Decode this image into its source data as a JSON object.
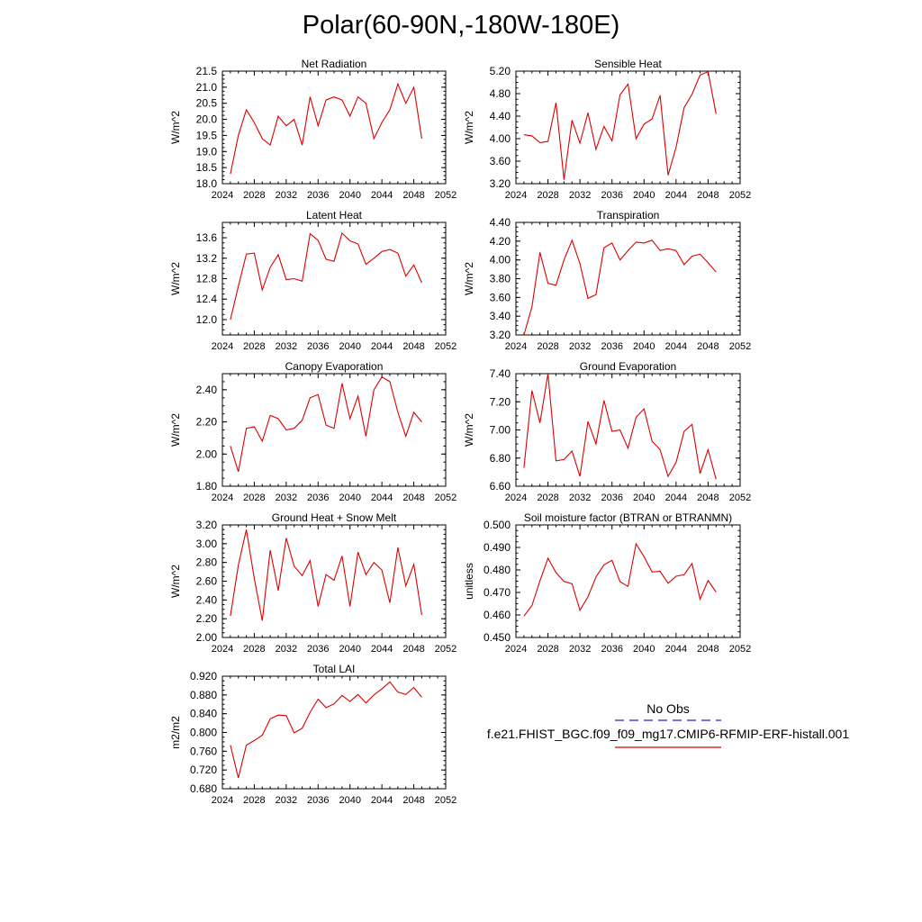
{
  "page": {
    "title": "Polar(60-90N,-180W-180E)",
    "legend": {
      "obs_label": "No Obs",
      "obs_color": "#2222cc",
      "case_label": "f.e21.FHIST_BGC.f09_f09_mg17.CMIP6-RFMIP-ERF-histall.001",
      "case_color": "#dd0000"
    }
  },
  "chart_data": [
    {
      "type": "line",
      "title": "Net Radiation",
      "ylabel": "W/m^2",
      "xlim": [
        2024,
        2052
      ],
      "xticks": [
        2024,
        2028,
        2032,
        2036,
        2040,
        2044,
        2048,
        2052
      ],
      "ylim": [
        18.0,
        21.5
      ],
      "yticks": [
        "18.0",
        "18.5",
        "19.0",
        "19.5",
        "20.0",
        "20.5",
        "21.0",
        "21.5"
      ],
      "series": [
        {
          "color": "#dd0000",
          "x": [
            2025,
            2026,
            2027,
            2028,
            2029,
            2030,
            2031,
            2032,
            2033,
            2034,
            2035,
            2036,
            2037,
            2038,
            2039,
            2040,
            2041,
            2042,
            2043,
            2044,
            2045,
            2046,
            2047,
            2048,
            2049
          ],
          "values": [
            18.3,
            19.5,
            20.3,
            19.9,
            19.4,
            19.2,
            20.1,
            19.8,
            20.0,
            19.2,
            20.7,
            19.8,
            20.6,
            20.7,
            20.6,
            20.1,
            20.7,
            20.5,
            19.4,
            19.9,
            20.3,
            21.1,
            20.5,
            21.0,
            19.4
          ]
        }
      ]
    },
    {
      "type": "line",
      "title": "Sensible Heat",
      "ylabel": "W/m^2",
      "xlim": [
        2024,
        2052
      ],
      "xticks": [
        2024,
        2028,
        2032,
        2036,
        2040,
        2044,
        2048,
        2052
      ],
      "ylim": [
        3.2,
        5.2
      ],
      "yticks": [
        "3.20",
        "3.60",
        "4.00",
        "4.40",
        "4.80",
        "5.20"
      ],
      "series": [
        {
          "color": "#dd0000",
          "x": [
            2025,
            2026,
            2027,
            2028,
            2029,
            2030,
            2031,
            2032,
            2033,
            2034,
            2035,
            2036,
            2037,
            2038,
            2039,
            2040,
            2041,
            2042,
            2043,
            2044,
            2045,
            2046,
            2047,
            2048,
            2049
          ],
          "values": [
            4.07,
            4.05,
            3.93,
            3.95,
            4.64,
            3.27,
            4.33,
            3.92,
            4.46,
            3.81,
            4.22,
            3.96,
            4.78,
            4.97,
            4.0,
            4.26,
            4.35,
            4.77,
            3.35,
            3.85,
            4.55,
            4.79,
            5.13,
            5.19,
            4.44
          ]
        }
      ]
    },
    {
      "type": "line",
      "title": "Latent Heat",
      "ylabel": "W/m^2",
      "xlim": [
        2024,
        2052
      ],
      "xticks": [
        2024,
        2028,
        2032,
        2036,
        2040,
        2044,
        2048,
        2052
      ],
      "ylim": [
        11.7,
        13.9
      ],
      "yticks": [
        "12.0",
        "12.4",
        "12.8",
        "13.2",
        "13.6"
      ],
      "series": [
        {
          "color": "#dd0000",
          "x": [
            2025,
            2026,
            2027,
            2028,
            2029,
            2030,
            2031,
            2032,
            2033,
            2034,
            2035,
            2036,
            2037,
            2038,
            2039,
            2040,
            2041,
            2042,
            2043,
            2044,
            2045,
            2046,
            2047,
            2048,
            2049
          ],
          "values": [
            12.0,
            12.65,
            13.28,
            13.3,
            12.58,
            13.02,
            13.27,
            12.78,
            12.8,
            12.75,
            13.68,
            13.55,
            13.18,
            13.14,
            13.69,
            13.54,
            13.48,
            13.08,
            13.2,
            13.33,
            13.37,
            13.3,
            12.85,
            13.07,
            12.72
          ]
        }
      ]
    },
    {
      "type": "line",
      "title": "Transpiration",
      "ylabel": "W/m^2",
      "xlim": [
        2024,
        2052
      ],
      "xticks": [
        2024,
        2028,
        2032,
        2036,
        2040,
        2044,
        2048,
        2052
      ],
      "ylim": [
        3.2,
        4.4
      ],
      "yticks": [
        "3.20",
        "3.40",
        "3.60",
        "3.80",
        "4.00",
        "4.20",
        "4.40"
      ],
      "series": [
        {
          "color": "#dd0000",
          "x": [
            2025,
            2026,
            2027,
            2028,
            2029,
            2030,
            2031,
            2032,
            2033,
            2034,
            2035,
            2036,
            2037,
            2038,
            2039,
            2040,
            2041,
            2042,
            2043,
            2044,
            2045,
            2046,
            2047,
            2048,
            2049
          ],
          "values": [
            3.2,
            3.5,
            4.08,
            3.75,
            3.73,
            4.0,
            4.21,
            3.96,
            3.59,
            3.63,
            4.13,
            4.18,
            4.0,
            4.1,
            4.19,
            4.18,
            4.21,
            4.1,
            4.12,
            4.1,
            3.95,
            4.04,
            4.06,
            3.97,
            3.87
          ]
        }
      ]
    },
    {
      "type": "line",
      "title": "Canopy Evaporation",
      "ylabel": "W/m^2",
      "xlim": [
        2024,
        2052
      ],
      "xticks": [
        2024,
        2028,
        2032,
        2036,
        2040,
        2044,
        2048,
        2052
      ],
      "ylim": [
        1.8,
        2.5
      ],
      "yticks": [
        "1.80",
        "2.00",
        "2.20",
        "2.40"
      ],
      "series": [
        {
          "color": "#dd0000",
          "x": [
            2025,
            2026,
            2027,
            2028,
            2029,
            2030,
            2031,
            2032,
            2033,
            2034,
            2035,
            2036,
            2037,
            2038,
            2039,
            2040,
            2041,
            2042,
            2043,
            2044,
            2045,
            2046,
            2047,
            2048,
            2049
          ],
          "values": [
            2.05,
            1.89,
            2.16,
            2.17,
            2.08,
            2.24,
            2.22,
            2.15,
            2.16,
            2.21,
            2.35,
            2.37,
            2.18,
            2.16,
            2.44,
            2.22,
            2.36,
            2.11,
            2.4,
            2.48,
            2.45,
            2.26,
            2.11,
            2.26,
            2.2
          ]
        }
      ]
    },
    {
      "type": "line",
      "title": "Ground Evaporation",
      "ylabel": "W/m^2",
      "xlim": [
        2024,
        2052
      ],
      "xticks": [
        2024,
        2028,
        2032,
        2036,
        2040,
        2044,
        2048,
        2052
      ],
      "ylim": [
        6.6,
        7.4
      ],
      "yticks": [
        "6.60",
        "6.80",
        "7.00",
        "7.20",
        "7.40"
      ],
      "series": [
        {
          "color": "#dd0000",
          "x": [
            2025,
            2026,
            2027,
            2028,
            2029,
            2030,
            2031,
            2032,
            2033,
            2034,
            2035,
            2036,
            2037,
            2038,
            2039,
            2040,
            2041,
            2042,
            2043,
            2044,
            2045,
            2046,
            2047,
            2048,
            2049
          ],
          "values": [
            6.73,
            7.28,
            7.05,
            7.4,
            6.78,
            6.79,
            6.85,
            6.67,
            7.06,
            6.9,
            7.21,
            6.99,
            7.0,
            6.87,
            7.09,
            7.15,
            6.92,
            6.86,
            6.67,
            6.77,
            6.99,
            7.04,
            6.69,
            6.86,
            6.65
          ]
        }
      ]
    },
    {
      "type": "line",
      "title": "Ground Heat + Snow Melt",
      "ylabel": "W/m^2",
      "xlim": [
        2024,
        2052
      ],
      "xticks": [
        2024,
        2028,
        2032,
        2036,
        2040,
        2044,
        2048,
        2052
      ],
      "ylim": [
        2.0,
        3.2
      ],
      "yticks": [
        "2.00",
        "2.20",
        "2.40",
        "2.60",
        "2.80",
        "3.00",
        "3.20"
      ],
      "series": [
        {
          "color": "#dd0000",
          "x": [
            2025,
            2026,
            2027,
            2028,
            2029,
            2030,
            2031,
            2032,
            2033,
            2034,
            2035,
            2036,
            2037,
            2038,
            2039,
            2040,
            2041,
            2042,
            2043,
            2044,
            2045,
            2046,
            2047,
            2048,
            2049
          ],
          "values": [
            2.23,
            2.77,
            3.15,
            2.63,
            2.18,
            2.93,
            2.5,
            3.06,
            2.76,
            2.66,
            2.82,
            2.33,
            2.67,
            2.61,
            2.87,
            2.33,
            2.91,
            2.67,
            2.8,
            2.72,
            2.37,
            2.96,
            2.55,
            2.78,
            2.24
          ]
        }
      ]
    },
    {
      "type": "line",
      "title": "Soil moisture factor (BTRAN or BTRANMN)",
      "ylabel": "unitless",
      "xlim": [
        2024,
        2052
      ],
      "xticks": [
        2024,
        2028,
        2032,
        2036,
        2040,
        2044,
        2048,
        2052
      ],
      "ylim": [
        0.45,
        0.5
      ],
      "yticks": [
        "0.450",
        "0.460",
        "0.470",
        "0.480",
        "0.490",
        "0.500"
      ],
      "series": [
        {
          "color": "#dd0000",
          "x": [
            2025,
            2026,
            2027,
            2028,
            2029,
            2030,
            2031,
            2032,
            2033,
            2034,
            2035,
            2036,
            2037,
            2038,
            2039,
            2040,
            2041,
            2042,
            2043,
            2044,
            2045,
            2046,
            2047,
            2048,
            2049
          ],
          "values": [
            0.4595,
            0.4642,
            0.4752,
            0.4852,
            0.4788,
            0.4749,
            0.4739,
            0.4621,
            0.4681,
            0.4769,
            0.4823,
            0.4843,
            0.4748,
            0.4727,
            0.4916,
            0.4859,
            0.4791,
            0.4794,
            0.4741,
            0.4772,
            0.4779,
            0.4829,
            0.467,
            0.4753,
            0.4702
          ]
        }
      ]
    },
    {
      "type": "line",
      "title": "Total LAI",
      "ylabel": "m2/m2",
      "xlim": [
        2024,
        2052
      ],
      "xticks": [
        2024,
        2028,
        2032,
        2036,
        2040,
        2044,
        2048,
        2052
      ],
      "ylim": [
        0.68,
        0.92
      ],
      "yticks": [
        "0.680",
        "0.720",
        "0.760",
        "0.800",
        "0.840",
        "0.880",
        "0.920"
      ],
      "series": [
        {
          "color": "#dd0000",
          "x": [
            2025,
            2026,
            2027,
            2028,
            2029,
            2030,
            2031,
            2032,
            2033,
            2034,
            2035,
            2036,
            2037,
            2038,
            2039,
            2040,
            2041,
            2042,
            2043,
            2044,
            2045,
            2046,
            2047,
            2048,
            2049
          ],
          "values": [
            0.773,
            0.703,
            0.773,
            0.783,
            0.794,
            0.829,
            0.837,
            0.836,
            0.799,
            0.809,
            0.843,
            0.871,
            0.853,
            0.861,
            0.879,
            0.866,
            0.881,
            0.863,
            0.88,
            0.893,
            0.908,
            0.886,
            0.881,
            0.896,
            0.875
          ]
        }
      ]
    }
  ]
}
